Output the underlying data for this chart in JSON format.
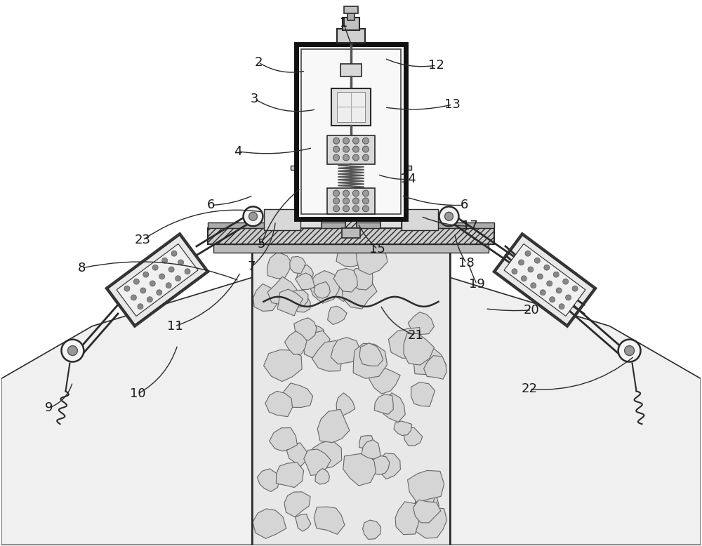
{
  "bg_color": "#ffffff",
  "line_color": "#2a2a2a",
  "figsize": [
    10,
    7.78
  ],
  "dpi": 100
}
